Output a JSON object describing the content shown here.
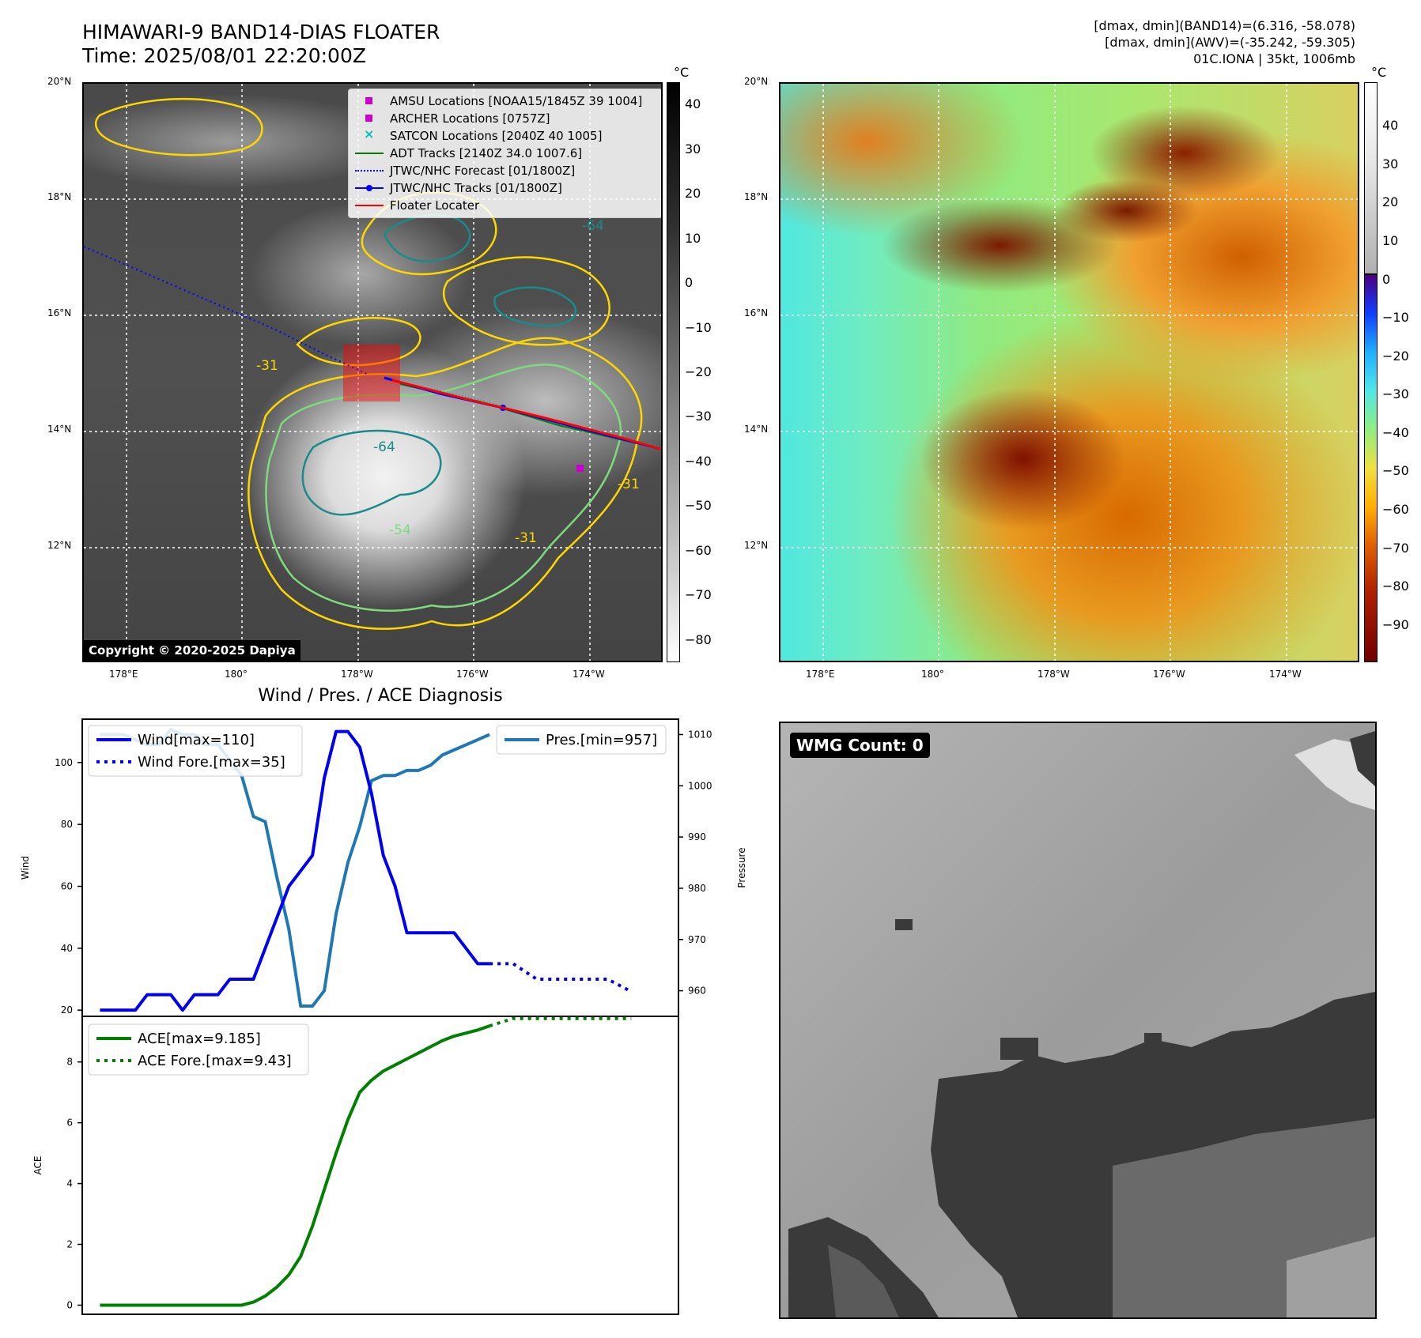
{
  "header": {
    "title_line1": "HIMAWARI-9 BAND14-DIAS FLOATER",
    "title_line2": "Time: 2025/08/01 22:20:00Z",
    "info_line1": "[dmax, dmin](BAND14)=(6.316, -58.078)",
    "info_line2": "[dmax, dmin](AWV)=(-35.242, -59.305)",
    "info_line3": "01C.IONA | 35kt, 1006mb"
  },
  "map_axes": {
    "lat_labels": [
      "20°N",
      "18°N",
      "16°N",
      "14°N",
      "12°N"
    ],
    "lon_labels": [
      "178°E",
      "180°",
      "178°W",
      "176°W",
      "174°W"
    ]
  },
  "ir_panel": {
    "copyright": "Copyright © 2020-2025 Dapiya",
    "colorbar_unit": "°C",
    "colorbar_ticks": [
      "40",
      "30",
      "20",
      "10",
      "0",
      "−10",
      "−20",
      "−30",
      "−40",
      "−50",
      "−60",
      "−70",
      "−80"
    ],
    "contour_labels": [
      "-31",
      "-64",
      "-54",
      "-31",
      "-31",
      "-64"
    ],
    "legend": [
      {
        "label": "AMSU Locations [NOAA15/1845Z 39 1004]",
        "symbol": "square",
        "color": "#cc00cc"
      },
      {
        "label": "ARCHER Locations [0757Z]",
        "symbol": "square",
        "color": "#cc00cc"
      },
      {
        "label": "SATCON Locations [2040Z 40 1005]",
        "symbol": "x",
        "color": "#00c0c0"
      },
      {
        "label": "ADT Tracks [2140Z 34.0 1007.6]",
        "symbol": "line",
        "color": "#008000"
      },
      {
        "label": "JTWC/NHC Forecast [01/1800Z]",
        "symbol": "dotted",
        "color": "#0000ff"
      },
      {
        "label": "JTWC/NHC Tracks [01/1800Z]",
        "symbol": "line-dot",
        "color": "#0000ff"
      },
      {
        "label": "Floater Locater",
        "symbol": "line",
        "color": "#ff0000"
      }
    ]
  },
  "awv_panel": {
    "colorbar_unit": "°C",
    "colorbar_ticks": [
      "40",
      "30",
      "20",
      "10",
      "0",
      "−10",
      "−20",
      "−30",
      "−40",
      "−50",
      "−60",
      "−70",
      "−80",
      "−90"
    ]
  },
  "wmg_panel": {
    "badge": "WMG Count: 0"
  },
  "chart_data": [
    {
      "type": "line",
      "title": "Wind / Pres. / ACE Diagnosis",
      "ylabel": "Wind",
      "ylabel2": "Pressure",
      "ylim": [
        18,
        114
      ],
      "ylim2": [
        955,
        1013
      ],
      "yticks": [
        20,
        40,
        60,
        80,
        100
      ],
      "yticks2": [
        960,
        970,
        980,
        990,
        1000,
        1010
      ],
      "legend_left": [
        "Wind[max=110]",
        "Wind Fore.[max=35]"
      ],
      "legend_right": [
        "Pres.[min=957]"
      ],
      "series": [
        {
          "name": "Wind[max=110]",
          "color": "#0000ee",
          "style": "solid",
          "x": [
            0,
            1,
            2,
            3,
            4,
            5,
            6,
            7,
            8,
            9,
            10,
            11,
            12,
            13,
            14,
            15,
            16,
            17,
            18,
            19,
            20,
            21,
            22,
            23,
            24,
            25,
            26,
            27,
            28,
            29,
            30,
            31,
            32,
            33
          ],
          "values": [
            20,
            20,
            20,
            20,
            25,
            25,
            25,
            20,
            25,
            25,
            25,
            30,
            30,
            30,
            40,
            50,
            60,
            65,
            70,
            95,
            110,
            110,
            105,
            90,
            70,
            60,
            45,
            45,
            45,
            45,
            45,
            40,
            35,
            35
          ]
        },
        {
          "name": "Wind Fore.[max=35]",
          "color": "#0000ee",
          "style": "dotted",
          "x": [
            33,
            35,
            37,
            39,
            41,
            43,
            45
          ],
          "values": [
            35,
            35,
            30,
            30,
            30,
            30,
            26
          ]
        },
        {
          "name": "Pres.[min=957]",
          "color": "#1f77b4",
          "style": "solid",
          "axis": "right",
          "x": [
            0,
            1,
            2,
            3,
            4,
            5,
            6,
            7,
            8,
            9,
            10,
            11,
            12,
            13,
            14,
            15,
            16,
            17,
            18,
            19,
            20,
            21,
            22,
            23,
            24,
            25,
            26,
            27,
            28,
            29,
            30,
            31,
            32,
            33
          ],
          "values": [
            1010,
            1010,
            1010,
            1009,
            1008,
            1008,
            1011,
            1010,
            1010,
            1008,
            1008,
            1005,
            1002,
            994,
            993,
            982,
            972,
            957,
            957,
            960,
            975,
            985,
            992,
            1001,
            1002,
            1002,
            1003,
            1003,
            1004,
            1006,
            1007,
            1008,
            1009,
            1010
          ]
        }
      ]
    },
    {
      "type": "line",
      "ylabel": "ACE",
      "ylim": [
        -0.3,
        9.5
      ],
      "yticks": [
        0,
        2,
        4,
        6,
        8
      ],
      "legend_left": [
        "ACE[max=9.185]",
        "ACE Fore.[max=9.43]"
      ],
      "series": [
        {
          "name": "ACE[max=9.185]",
          "color": "#008000",
          "style": "solid",
          "x": [
            0,
            1,
            2,
            3,
            4,
            5,
            6,
            7,
            8,
            9,
            10,
            11,
            12,
            13,
            14,
            15,
            16,
            17,
            18,
            19,
            20,
            21,
            22,
            23,
            24,
            25,
            26,
            27,
            28,
            29,
            30,
            31,
            32,
            33
          ],
          "values": [
            0,
            0,
            0,
            0,
            0,
            0,
            0,
            0,
            0,
            0,
            0,
            0,
            0,
            0.1,
            0.3,
            0.6,
            1,
            1.6,
            2.6,
            3.8,
            5,
            6.1,
            7,
            7.4,
            7.7,
            7.9,
            8.1,
            8.3,
            8.5,
            8.7,
            8.85,
            8.95,
            9.05,
            9.185
          ]
        },
        {
          "name": "ACE Fore.[max=9.43]",
          "color": "#008000",
          "style": "dotted",
          "x": [
            33,
            35,
            37,
            39,
            41,
            43,
            45
          ],
          "values": [
            9.185,
            9.43,
            9.43,
            9.43,
            9.43,
            9.43,
            9.43
          ]
        }
      ]
    }
  ]
}
